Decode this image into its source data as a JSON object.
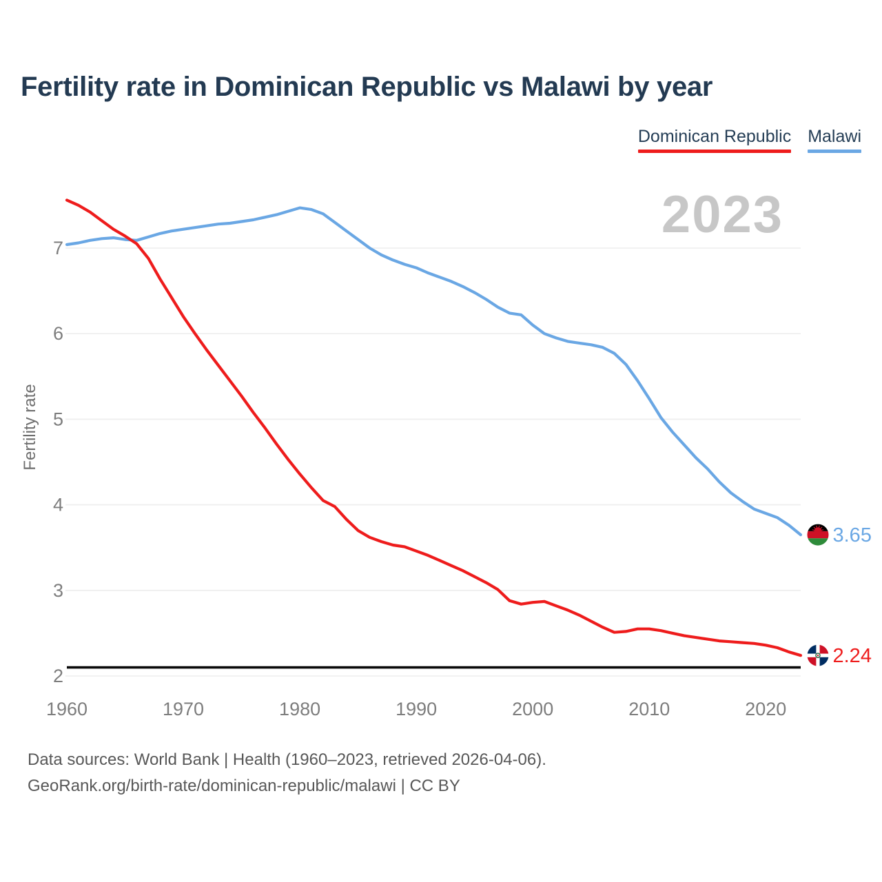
{
  "header": {
    "title": "Fertility rate in Dominican Republic vs Malawi by year"
  },
  "legend": [
    {
      "label": "Dominican Republic",
      "color": "#ee1c1c"
    },
    {
      "label": "Malawi",
      "color": "#6aa7e4"
    }
  ],
  "watermark": "2023",
  "chart_data": {
    "type": "line",
    "title": "Fertility rate in Dominican Republic vs Malawi by year",
    "xlabel": "",
    "ylabel": "Fertility rate",
    "grid": true,
    "legend_position": "top-right",
    "ylim": [
      2,
      7.6
    ],
    "yticks": [
      2,
      3,
      4,
      5,
      6,
      7
    ],
    "xticks": [
      1960,
      1970,
      1980,
      1990,
      2000,
      2010,
      2020
    ],
    "reference_line": {
      "value": 2.1,
      "color": "#0a0a0a"
    },
    "x": [
      1960,
      1961,
      1962,
      1963,
      1964,
      1965,
      1966,
      1967,
      1968,
      1969,
      1970,
      1971,
      1972,
      1973,
      1974,
      1975,
      1976,
      1977,
      1978,
      1979,
      1980,
      1981,
      1982,
      1983,
      1984,
      1985,
      1986,
      1987,
      1988,
      1989,
      1990,
      1991,
      1992,
      1993,
      1994,
      1995,
      1996,
      1997,
      1998,
      1999,
      2000,
      2001,
      2002,
      2003,
      2004,
      2005,
      2006,
      2007,
      2008,
      2009,
      2010,
      2011,
      2012,
      2013,
      2014,
      2015,
      2016,
      2017,
      2018,
      2019,
      2020,
      2021,
      2022,
      2023
    ],
    "series": [
      {
        "name": "Dominican Republic",
        "color": "#ee1c1c",
        "flag": "do",
        "flag_icon": "dominican-republic-flag-icon",
        "end_label": "2.24",
        "values": [
          7.56,
          7.5,
          7.42,
          7.32,
          7.22,
          7.14,
          7.05,
          6.88,
          6.64,
          6.42,
          6.2,
          6.0,
          5.81,
          5.63,
          5.45,
          5.27,
          5.08,
          4.9,
          4.71,
          4.53,
          4.36,
          4.2,
          4.05,
          3.98,
          3.83,
          3.7,
          3.62,
          3.57,
          3.53,
          3.51,
          3.46,
          3.41,
          3.35,
          3.29,
          3.23,
          3.16,
          3.09,
          3.01,
          2.88,
          2.84,
          2.86,
          2.87,
          2.82,
          2.77,
          2.71,
          2.64,
          2.57,
          2.51,
          2.52,
          2.55,
          2.55,
          2.53,
          2.5,
          2.47,
          2.45,
          2.43,
          2.41,
          2.4,
          2.39,
          2.38,
          2.36,
          2.33,
          2.28,
          2.24
        ]
      },
      {
        "name": "Malawi",
        "color": "#6aa7e4",
        "flag": "mw",
        "flag_icon": "malawi-flag-icon",
        "end_label": "3.65",
        "values": [
          7.04,
          7.06,
          7.09,
          7.11,
          7.12,
          7.1,
          7.09,
          7.13,
          7.17,
          7.2,
          7.22,
          7.24,
          7.26,
          7.28,
          7.29,
          7.31,
          7.33,
          7.36,
          7.39,
          7.43,
          7.47,
          7.45,
          7.4,
          7.3,
          7.2,
          7.1,
          7.0,
          6.92,
          6.86,
          6.81,
          6.77,
          6.71,
          6.66,
          6.61,
          6.55,
          6.48,
          6.4,
          6.31,
          6.24,
          6.22,
          6.1,
          6.0,
          5.95,
          5.91,
          5.89,
          5.87,
          5.84,
          5.77,
          5.64,
          5.45,
          5.24,
          5.02,
          4.85,
          4.7,
          4.55,
          4.42,
          4.27,
          4.14,
          4.04,
          3.95,
          3.9,
          3.85,
          3.76,
          3.65
        ]
      }
    ]
  },
  "footer": {
    "line1": "Data sources: World Bank | Health (1960–2023, retrieved 2026-04-06).",
    "line2": "GeoRank.org/birth-rate/dominican-republic/malawi | CC BY"
  }
}
